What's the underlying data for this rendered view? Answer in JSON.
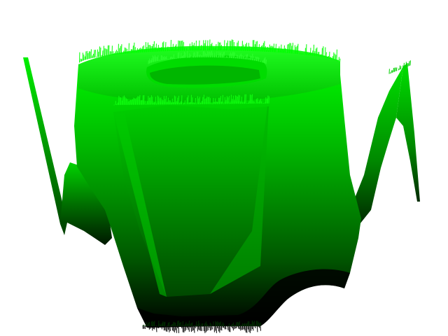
{
  "scene": {
    "background_color": "#ffffff",
    "surface_colors": {
      "bright": "#00ff00",
      "mid": "#00a000",
      "dark": "#003a00",
      "shadow": "#000000"
    },
    "object": "3d-surface-green"
  }
}
